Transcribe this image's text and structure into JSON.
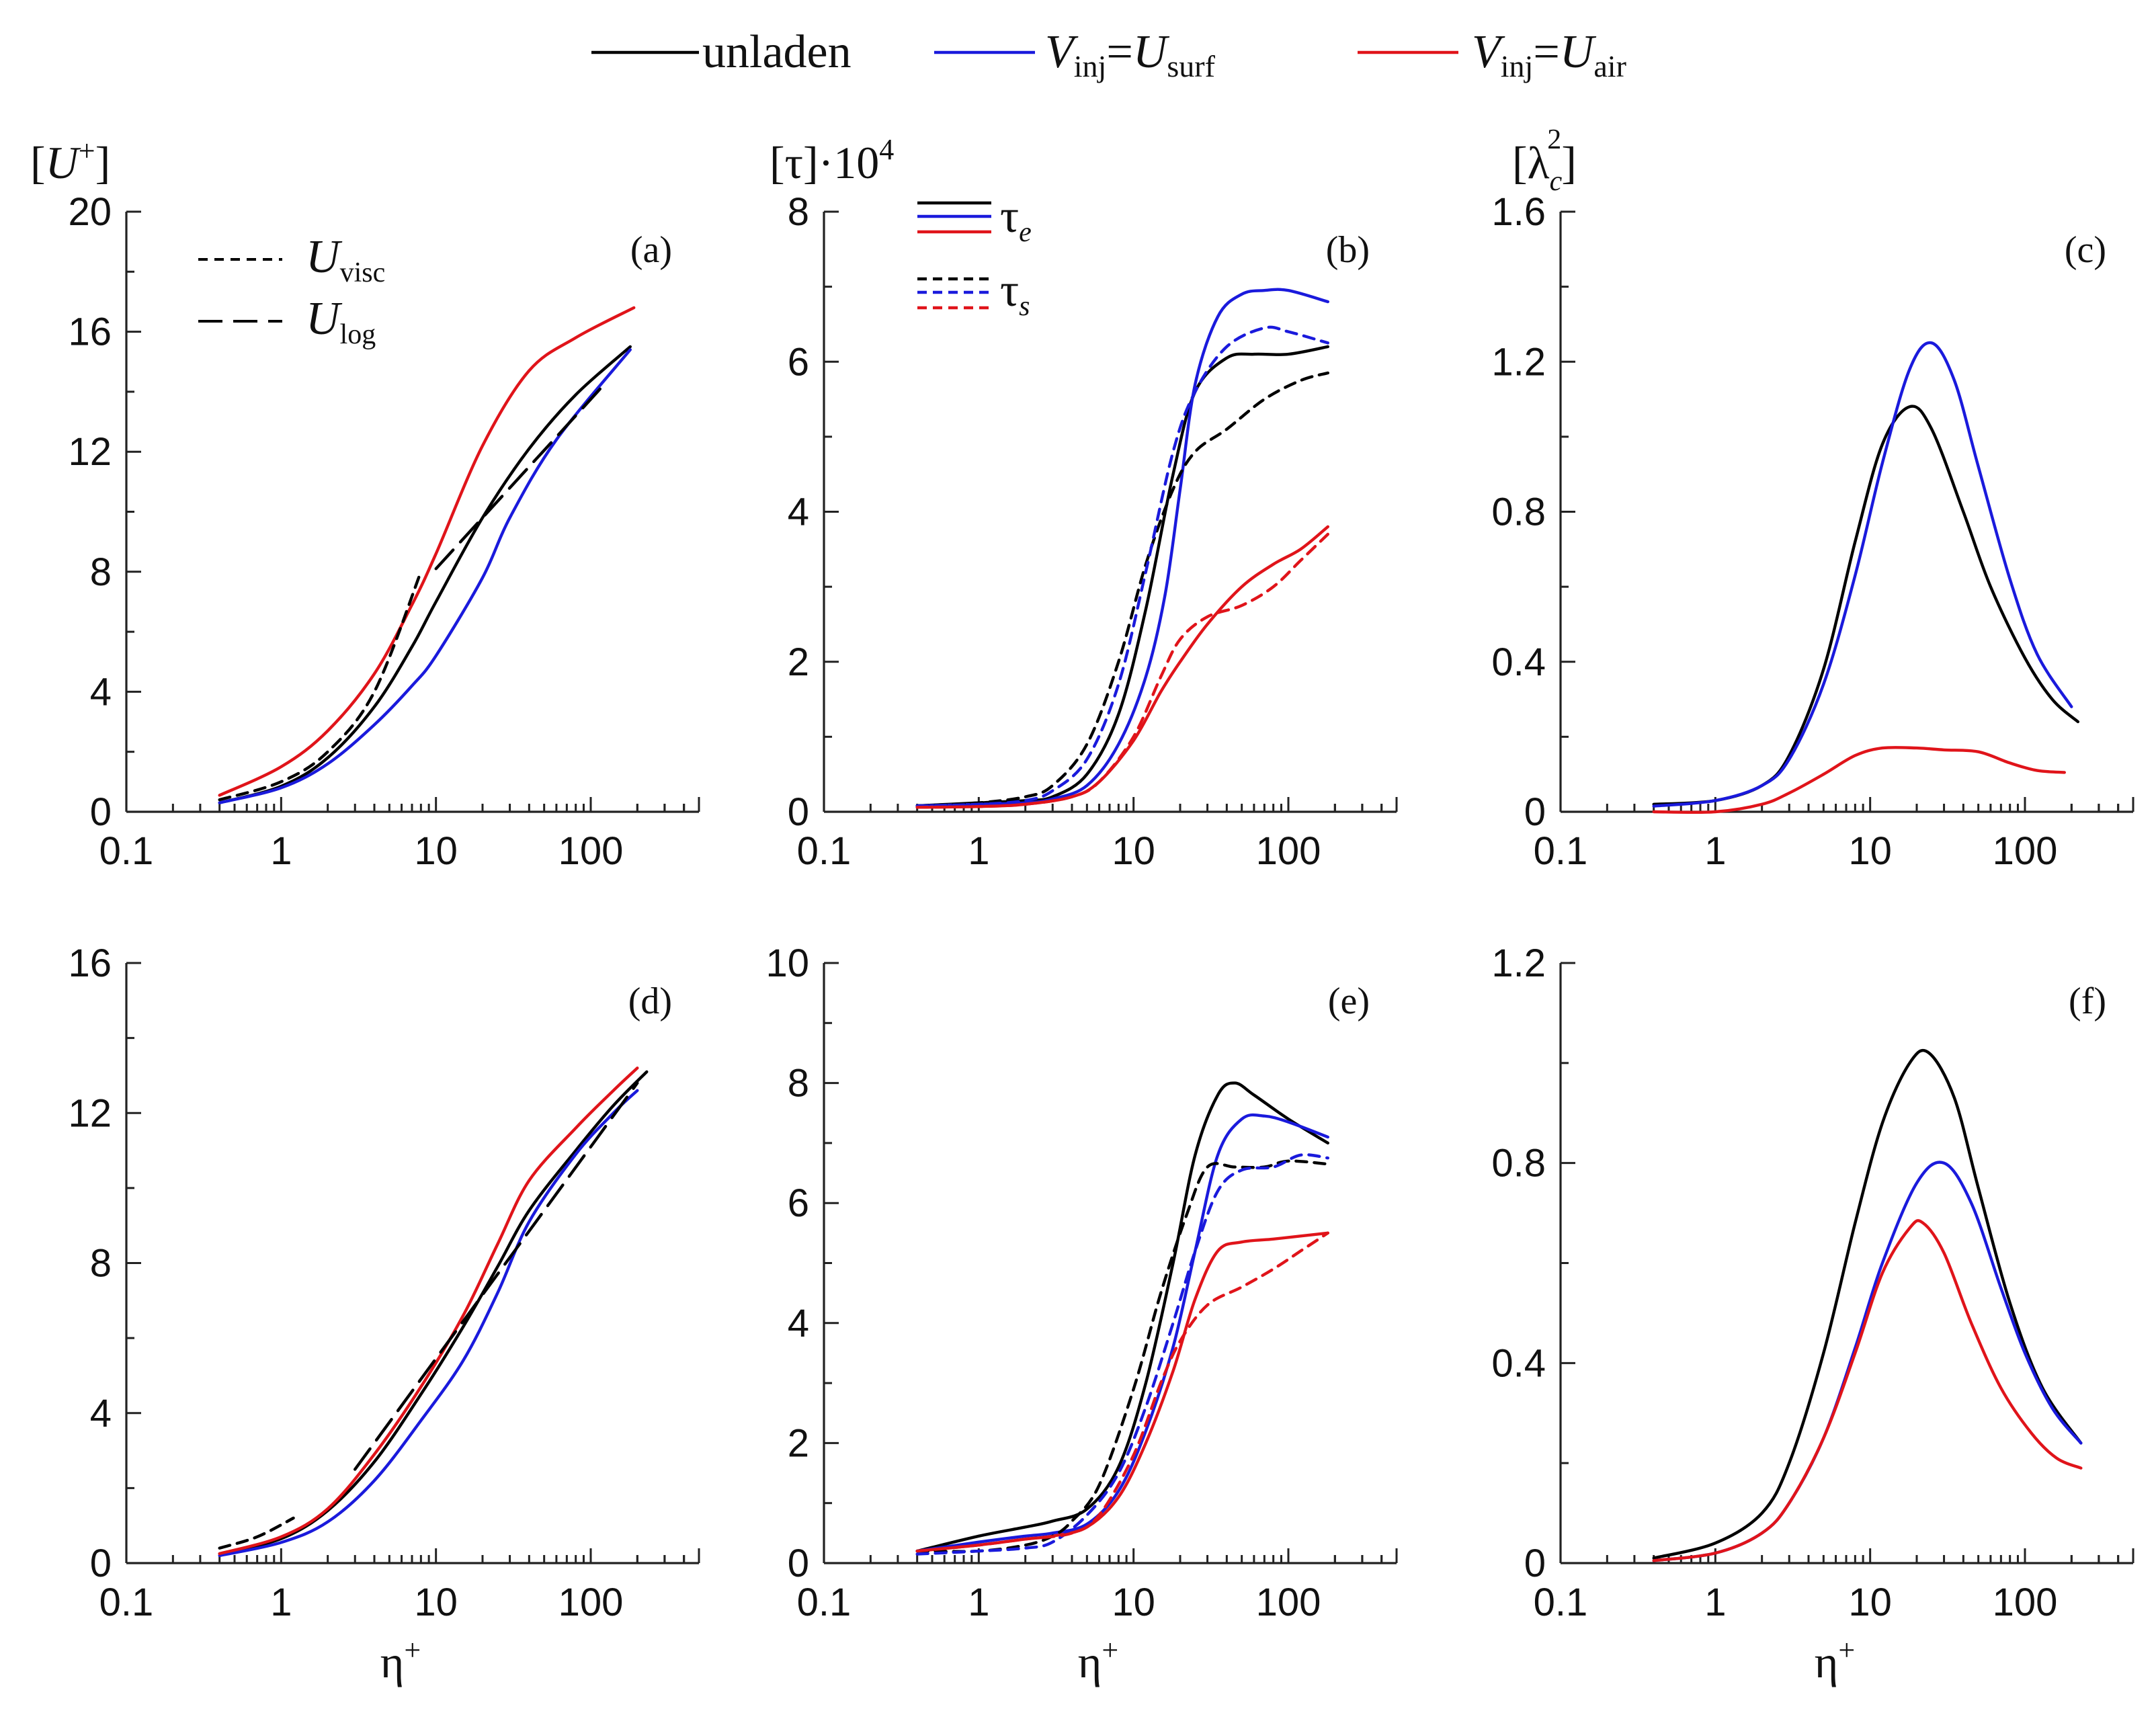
{
  "colors": {
    "unladen": "#000000",
    "surf": "#1a1adc",
    "air": "#e0141a",
    "axis": "#222222"
  },
  "legend": {
    "unladen": "unladen",
    "v_inj": "V",
    "inj": "inj",
    "eq": "=",
    "u_sym": "U",
    "surf": "surf",
    "air": "air"
  },
  "xaxis": {
    "ticks": [
      0.1,
      1,
      10,
      100
    ],
    "tick_labels": [
      "0.1",
      "1",
      "10",
      "100"
    ],
    "label_main": "η",
    "label_sup": "+"
  },
  "ylabels": {
    "a": {
      "open": "[",
      "sym": "U",
      "sup": "+",
      "close": "]"
    },
    "b": {
      "text": "[τ]·10",
      "sup": "4"
    },
    "c": {
      "open": "[",
      "sym": "λ",
      "sub": "c",
      "sup": "2",
      "close": "]"
    }
  },
  "annotations": {
    "a": {
      "uvisc_main": "U",
      "uvisc_sub": "visc",
      "ulog_main": "U",
      "ulog_sub": "log"
    },
    "b": {
      "tau_e_main": "τ",
      "tau_e_sub": "e",
      "tau_s_main": "τ",
      "tau_s_sub": "s"
    }
  },
  "chart_data": [
    {
      "type": "line",
      "panel": "a",
      "panel_label": "(a)",
      "xscale": "log",
      "xlim": [
        0.1,
        500
      ],
      "ylim": [
        0,
        20
      ],
      "yticks": [
        0,
        4,
        8,
        12,
        16,
        20
      ],
      "ytick_labels": [
        "0",
        "4",
        "8",
        "12",
        "16",
        "20"
      ],
      "ylabel": "[U+]",
      "xlabel": "η+",
      "series": [
        {
          "name": "unladen",
          "color": "#000000",
          "dash": "solid",
          "x": [
            0.4,
            1,
            2,
            4,
            7,
            10,
            20,
            40,
            80,
            180
          ],
          "y": [
            0.3,
            0.85,
            1.8,
            3.5,
            5.5,
            7.0,
            9.8,
            12.1,
            13.9,
            15.5
          ]
        },
        {
          "name": "V_inj=U_surf",
          "color": "#1a1adc",
          "dash": "solid",
          "x": [
            0.4,
            1,
            2,
            4,
            7,
            10,
            20,
            30,
            60,
            180
          ],
          "y": [
            0.3,
            0.8,
            1.6,
            2.9,
            4.2,
            5.2,
            7.8,
            9.8,
            12.4,
            15.4
          ]
        },
        {
          "name": "V_inj=U_air",
          "color": "#e0141a",
          "dash": "solid",
          "x": [
            0.4,
            1,
            2,
            4,
            7,
            10,
            20,
            40,
            80,
            190
          ],
          "y": [
            0.55,
            1.5,
            2.7,
            4.6,
            6.9,
            8.6,
            12.2,
            14.7,
            15.8,
            16.8
          ]
        },
        {
          "name": "U_visc",
          "color": "#000000",
          "dash": "short",
          "x": [
            0.4,
            1,
            2,
            4,
            8
          ],
          "y": [
            0.4,
            1.0,
            2.0,
            4.0,
            8.0
          ]
        },
        {
          "name": "U_log",
          "color": "#000000",
          "dash": "long",
          "x": [
            10,
            20,
            40,
            80,
            120
          ],
          "y": [
            8.1,
            9.8,
            11.5,
            13.2,
            14.2
          ]
        }
      ]
    },
    {
      "type": "line",
      "panel": "b",
      "panel_label": "(b)",
      "xscale": "log",
      "xlim": [
        0.1,
        500
      ],
      "ylim": [
        0,
        8
      ],
      "yticks": [
        0,
        2,
        4,
        6,
        8
      ],
      "ytick_labels": [
        "0",
        "2",
        "4",
        "6",
        "8"
      ],
      "ylabel": "[τ]·10^4",
      "xlabel": "η+",
      "series": [
        {
          "name": "unladen τe",
          "color": "#000000",
          "dash": "solid",
          "x": [
            0.4,
            1,
            2,
            3,
            5,
            8,
            12,
            18,
            25,
            40,
            60,
            100,
            180
          ],
          "y": [
            0.08,
            0.12,
            0.15,
            0.2,
            0.5,
            1.3,
            2.7,
            4.5,
            5.6,
            6.05,
            6.1,
            6.1,
            6.2
          ]
        },
        {
          "name": "surf τe",
          "color": "#1a1adc",
          "dash": "solid",
          "x": [
            0.4,
            1,
            2,
            3,
            5,
            8,
            12,
            16,
            20,
            25,
            35,
            50,
            70,
            100,
            180
          ],
          "y": [
            0.08,
            0.1,
            0.12,
            0.17,
            0.35,
            0.9,
            1.8,
            2.9,
            4.3,
            5.7,
            6.6,
            6.9,
            6.95,
            6.95,
            6.8
          ]
        },
        {
          "name": "air τe",
          "color": "#e0141a",
          "dash": "solid",
          "x": [
            0.4,
            1,
            2,
            4,
            6,
            10,
            15,
            20,
            30,
            50,
            80,
            120,
            180
          ],
          "y": [
            0.06,
            0.07,
            0.1,
            0.2,
            0.4,
            0.95,
            1.6,
            2.0,
            2.5,
            3.0,
            3.3,
            3.5,
            3.8
          ]
        },
        {
          "name": "unladen τs",
          "color": "#000000",
          "dash": "short",
          "x": [
            0.4,
            1,
            2,
            3,
            5,
            8,
            12,
            18,
            25,
            40,
            70,
            120,
            180
          ],
          "y": [
            0.08,
            0.12,
            0.2,
            0.35,
            0.9,
            2.0,
            3.3,
            4.3,
            4.8,
            5.1,
            5.5,
            5.75,
            5.85
          ]
        },
        {
          "name": "surf τs",
          "color": "#1a1adc",
          "dash": "short",
          "x": [
            0.4,
            1,
            2,
            3,
            5,
            8,
            12,
            18,
            25,
            40,
            70,
            100,
            180
          ],
          "y": [
            0.08,
            0.1,
            0.15,
            0.28,
            0.7,
            1.7,
            3.2,
            4.8,
            5.6,
            6.2,
            6.45,
            6.4,
            6.25
          ]
        },
        {
          "name": "air τs",
          "color": "#e0141a",
          "dash": "short",
          "x": [
            0.4,
            1,
            2,
            4,
            6,
            10,
            15,
            20,
            30,
            50,
            80,
            120,
            180
          ],
          "y": [
            0.06,
            0.07,
            0.1,
            0.2,
            0.4,
            1.0,
            1.8,
            2.3,
            2.6,
            2.75,
            3.0,
            3.35,
            3.7
          ]
        }
      ]
    },
    {
      "type": "line",
      "panel": "c",
      "panel_label": "(c)",
      "xscale": "log",
      "xlim": [
        0.1,
        500
      ],
      "ylim": [
        0,
        1.6
      ],
      "yticks": [
        0,
        0.4,
        0.8,
        1.2,
        1.6
      ],
      "ytick_labels": [
        "0",
        "0.4",
        "0.8",
        "1.2",
        "1.6"
      ],
      "ylabel": "[λc^2]",
      "xlabel": "η+",
      "series": [
        {
          "name": "unladen",
          "color": "#000000",
          "dash": "solid",
          "x": [
            0.4,
            1,
            2,
            3,
            5,
            8,
            12,
            18,
            25,
            40,
            60,
            100,
            150,
            220
          ],
          "y": [
            0.02,
            0.03,
            0.07,
            0.15,
            0.38,
            0.72,
            0.98,
            1.08,
            1.02,
            0.8,
            0.6,
            0.41,
            0.3,
            0.24
          ]
        },
        {
          "name": "V_inj=U_surf",
          "color": "#1a1adc",
          "dash": "solid",
          "x": [
            0.4,
            1,
            2,
            3,
            5,
            8,
            12,
            18,
            25,
            35,
            50,
            80,
            120,
            200
          ],
          "y": [
            0.015,
            0.03,
            0.07,
            0.14,
            0.34,
            0.63,
            0.93,
            1.18,
            1.25,
            1.15,
            0.92,
            0.62,
            0.42,
            0.28
          ]
        },
        {
          "name": "V_inj=U_air",
          "color": "#e0141a",
          "dash": "solid",
          "x": [
            0.4,
            1,
            2,
            3,
            5,
            8,
            12,
            20,
            30,
            50,
            80,
            120,
            180
          ],
          "y": [
            0.0,
            0.0,
            0.02,
            0.05,
            0.1,
            0.15,
            0.17,
            0.17,
            0.165,
            0.16,
            0.13,
            0.11,
            0.105
          ]
        }
      ]
    },
    {
      "type": "line",
      "panel": "d",
      "panel_label": "(d)",
      "xscale": "log",
      "xlim": [
        0.1,
        500
      ],
      "ylim": [
        0,
        16
      ],
      "yticks": [
        0,
        4,
        8,
        12,
        16
      ],
      "ytick_labels": [
        "0",
        "4",
        "8",
        "12",
        "16"
      ],
      "xlabel": "η+",
      "series": [
        {
          "name": "unladen",
          "color": "#000000",
          "dash": "solid",
          "x": [
            0.4,
            1,
            2,
            4,
            8,
            15,
            25,
            40,
            80,
            140,
            230
          ],
          "y": [
            0.25,
            0.65,
            1.4,
            2.7,
            4.5,
            6.3,
            7.9,
            9.4,
            11.0,
            12.2,
            13.1
          ]
        },
        {
          "name": "V_inj=U_surf",
          "color": "#1a1adc",
          "dash": "solid",
          "x": [
            0.4,
            1,
            2,
            4,
            8,
            15,
            25,
            40,
            80,
            140,
            200
          ],
          "y": [
            0.2,
            0.55,
            1.1,
            2.2,
            3.8,
            5.4,
            7.2,
            9.1,
            10.9,
            12.0,
            12.6
          ]
        },
        {
          "name": "V_inj=U_air",
          "color": "#e0141a",
          "dash": "solid",
          "x": [
            0.4,
            1,
            2,
            4,
            8,
            15,
            25,
            40,
            80,
            140,
            200
          ],
          "y": [
            0.25,
            0.7,
            1.45,
            2.9,
            4.7,
            6.6,
            8.5,
            10.2,
            11.6,
            12.6,
            13.2
          ]
        },
        {
          "name": "U_visc",
          "color": "#000000",
          "dash": "short",
          "x": [
            0.4,
            0.7,
            1.2
          ],
          "y": [
            0.4,
            0.7,
            1.2
          ]
        },
        {
          "name": "U_log",
          "color": "#000000",
          "dash": "long",
          "x": [
            3,
            6,
            12,
            25,
            50,
            100,
            200
          ],
          "y": [
            2.5,
            4.2,
            5.9,
            7.7,
            9.4,
            11.1,
            12.8
          ]
        }
      ]
    },
    {
      "type": "line",
      "panel": "e",
      "panel_label": "(e)",
      "xscale": "log",
      "xlim": [
        0.1,
        500
      ],
      "ylim": [
        0,
        10
      ],
      "yticks": [
        0,
        2,
        4,
        6,
        8,
        10
      ],
      "ytick_labels": [
        "0",
        "2",
        "4",
        "6",
        "8",
        "10"
      ],
      "xlabel": "η+",
      "series": [
        {
          "name": "unladen τe",
          "color": "#000000",
          "dash": "solid",
          "x": [
            0.4,
            1,
            2,
            3,
            5,
            8,
            12,
            18,
            25,
            35,
            45,
            60,
            100,
            180
          ],
          "y": [
            0.2,
            0.45,
            0.6,
            0.7,
            0.9,
            1.6,
            3.0,
            5.0,
            6.8,
            7.8,
            8.0,
            7.8,
            7.4,
            7.0
          ]
        },
        {
          "name": "surf τe",
          "color": "#1a1adc",
          "dash": "solid",
          "x": [
            0.4,
            1,
            2,
            3,
            5,
            8,
            12,
            18,
            25,
            35,
            50,
            70,
            100,
            180
          ],
          "y": [
            0.2,
            0.35,
            0.45,
            0.5,
            0.65,
            1.2,
            2.2,
            3.6,
            5.2,
            6.8,
            7.4,
            7.45,
            7.35,
            7.1
          ]
        },
        {
          "name": "air τe",
          "color": "#e0141a",
          "dash": "solid",
          "x": [
            0.4,
            1,
            2,
            3,
            5,
            8,
            12,
            18,
            25,
            35,
            50,
            80,
            120,
            180
          ],
          "y": [
            0.2,
            0.3,
            0.4,
            0.45,
            0.6,
            1.1,
            2.0,
            3.2,
            4.4,
            5.2,
            5.35,
            5.4,
            5.45,
            5.5
          ]
        },
        {
          "name": "unladen τs",
          "color": "#000000",
          "dash": "short",
          "x": [
            0.4,
            1,
            2,
            3,
            4,
            6,
            10,
            15,
            22,
            30,
            45,
            70,
            100,
            180
          ],
          "y": [
            0.2,
            0.2,
            0.3,
            0.45,
            0.7,
            1.3,
            2.9,
            4.5,
            5.8,
            6.6,
            6.6,
            6.6,
            6.7,
            6.65
          ]
        },
        {
          "name": "surf τs",
          "color": "#1a1adc",
          "dash": "short",
          "x": [
            0.4,
            1,
            2,
            3,
            5,
            8,
            12,
            18,
            25,
            35,
            50,
            80,
            120,
            180
          ],
          "y": [
            0.15,
            0.2,
            0.25,
            0.35,
            0.8,
            1.5,
            2.6,
            4.0,
            5.2,
            6.2,
            6.55,
            6.6,
            6.8,
            6.75
          ]
        },
        {
          "name": "air τs",
          "color": "#e0141a",
          "dash": "short",
          "x": [
            0.4,
            1,
            2,
            4,
            6,
            10,
            15,
            20,
            30,
            50,
            80,
            120,
            180
          ],
          "y": [
            0.2,
            0.3,
            0.4,
            0.5,
            0.8,
            1.8,
            3.0,
            3.7,
            4.3,
            4.6,
            4.9,
            5.2,
            5.5
          ]
        }
      ]
    },
    {
      "type": "line",
      "panel": "f",
      "panel_label": "(f)",
      "xscale": "log",
      "xlim": [
        0.1,
        500
      ],
      "ylim": [
        0,
        1.2
      ],
      "yticks": [
        0,
        0.4,
        0.8,
        1.2
      ],
      "ytick_labels": [
        "0",
        "0.4",
        "0.8",
        "1.2"
      ],
      "xlabel": "η+",
      "series": [
        {
          "name": "unladen",
          "color": "#000000",
          "dash": "solid",
          "x": [
            0.4,
            1,
            2,
            3,
            5,
            8,
            12,
            18,
            24,
            35,
            50,
            80,
            130,
            230
          ],
          "y": [
            0.01,
            0.04,
            0.1,
            0.2,
            0.42,
            0.68,
            0.88,
            1.0,
            1.02,
            0.93,
            0.75,
            0.52,
            0.35,
            0.24
          ]
        },
        {
          "name": "V_inj=U_surf",
          "color": "#1a1adc",
          "dash": "solid",
          "x": [
            0.4,
            1,
            2,
            3,
            5,
            8,
            12,
            20,
            30,
            45,
            70,
            100,
            150,
            230
          ],
          "y": [
            0.005,
            0.02,
            0.06,
            0.12,
            0.25,
            0.43,
            0.6,
            0.76,
            0.8,
            0.72,
            0.55,
            0.42,
            0.31,
            0.24
          ]
        },
        {
          "name": "V_inj=U_air",
          "color": "#e0141a",
          "dash": "solid",
          "x": [
            0.4,
            1,
            2,
            3,
            5,
            8,
            12,
            18,
            22,
            30,
            45,
            70,
            110,
            160,
            230
          ],
          "y": [
            0.005,
            0.02,
            0.06,
            0.12,
            0.25,
            0.42,
            0.58,
            0.67,
            0.68,
            0.62,
            0.48,
            0.35,
            0.26,
            0.21,
            0.19
          ]
        }
      ]
    }
  ]
}
